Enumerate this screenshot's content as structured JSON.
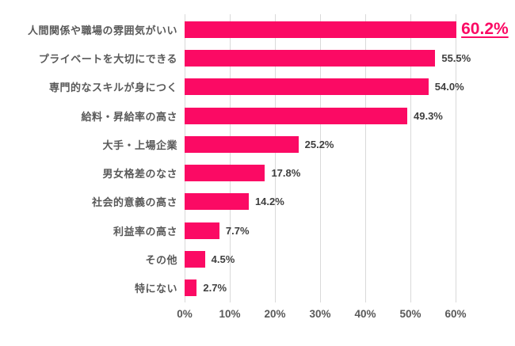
{
  "chart_data": {
    "type": "bar",
    "orientation": "horizontal",
    "title": "",
    "categories": [
      "人間関係や職場の雰囲気がいい",
      "プライベートを大切にできる",
      "専門的なスキルが身につく",
      "給料・昇給率の高さ",
      "大手・上場企業",
      "男女格差のなさ",
      "社会的意義の高さ",
      "利益率の高さ",
      "その他",
      "特にない"
    ],
    "values": [
      60.2,
      55.5,
      54.0,
      49.3,
      25.2,
      17.8,
      14.2,
      7.7,
      4.5,
      2.7
    ],
    "value_labels": [
      "60.2%",
      "55.5%",
      "54.0%",
      "49.3%",
      "25.2%",
      "17.8%",
      "14.2%",
      "7.7%",
      "4.5%",
      "2.7%"
    ],
    "highlight_index": 0,
    "x_tick_labels": [
      "0%",
      "10%",
      "20%",
      "30%",
      "40%",
      "50%",
      "60%"
    ],
    "x_tick_values": [
      0,
      10,
      20,
      30,
      40,
      50,
      60
    ],
    "xlim": [
      0,
      60
    ],
    "grid": true,
    "legend": false,
    "colors": {
      "bar": "#fb0a64",
      "highlight_text": "#fb0a64",
      "category_text": "#595959",
      "value_text": "#3f3f3f",
      "tick_text": "#595959",
      "gridline": "#d9d9d9",
      "background": "#ffffff"
    }
  }
}
